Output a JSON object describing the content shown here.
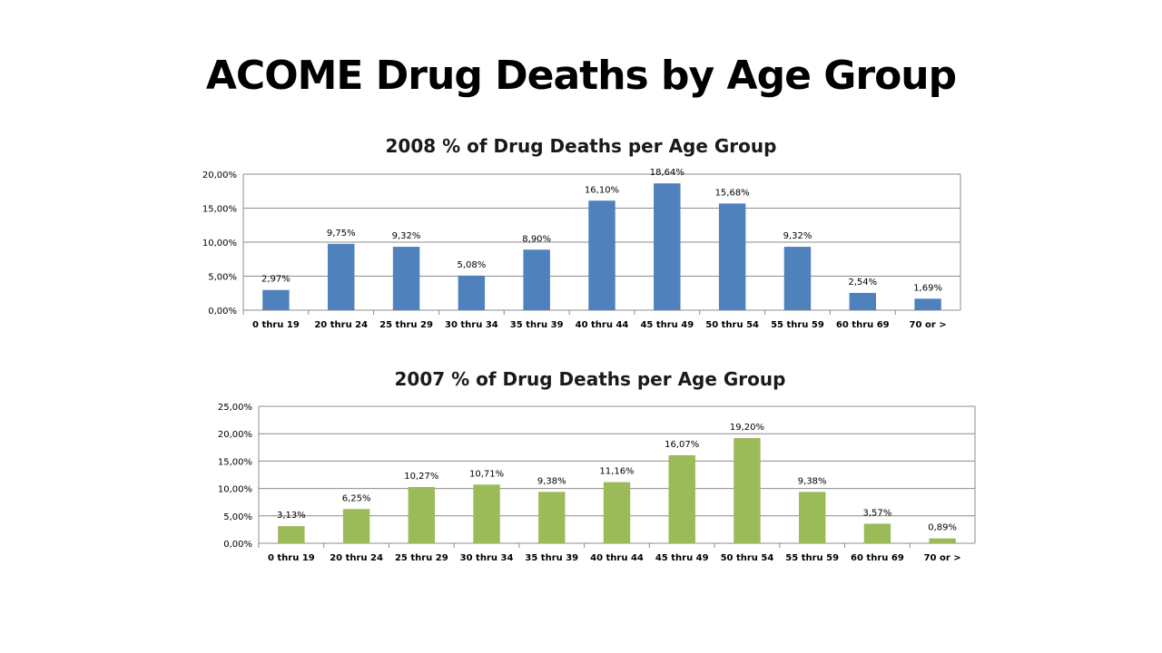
{
  "slide_title": "ACOME Drug Deaths by Age Group",
  "chart_data": [
    {
      "type": "bar",
      "title": "2008 % of Drug Deaths per Age Group",
      "xlabel": "",
      "ylabel": "",
      "categories": [
        "0 thru 19",
        "20 thru 24",
        "25 thru 29",
        "30 thru 34",
        "35 thru 39",
        "40 thru 44",
        "45 thru 49",
        "50 thru 54",
        "55 thru 59",
        "60 thru 69",
        "70 or >"
      ],
      "values": [
        2.97,
        9.75,
        9.32,
        5.08,
        8.9,
        16.1,
        18.64,
        15.68,
        9.32,
        2.54,
        1.69
      ],
      "value_labels": [
        "2,97%",
        "9,75%",
        "9,32%",
        "5,08%",
        "8,90%",
        "16,10%",
        "18,64%",
        "15,68%",
        "9,32%",
        "2,54%",
        "1,69%"
      ],
      "ylim": [
        0,
        20
      ],
      "yticks": [
        0,
        5,
        10,
        15,
        20
      ],
      "ytick_labels": [
        "0,00%",
        "5,00%",
        "10,00%",
        "15,00%",
        "20,00%"
      ],
      "grid": true,
      "legend": "none",
      "color": "#4f81bd"
    },
    {
      "type": "bar",
      "title": "2007 % of Drug Deaths per Age Group",
      "xlabel": "",
      "ylabel": "",
      "categories": [
        "0 thru 19",
        "20 thru 24",
        "25 thru 29",
        "30 thru 34",
        "35 thru 39",
        "40 thru 44",
        "45 thru 49",
        "50 thru 54",
        "55 thru 59",
        "60 thru 69",
        "70 or >"
      ],
      "values": [
        3.13,
        6.25,
        10.27,
        10.71,
        9.38,
        11.16,
        16.07,
        19.2,
        9.38,
        3.57,
        0.89
      ],
      "value_labels": [
        "3,13%",
        "6,25%",
        "10,27%",
        "10,71%",
        "9,38%",
        "11,16%",
        "16,07%",
        "19,20%",
        "9,38%",
        "3,57%",
        "0,89%"
      ],
      "ylim": [
        0,
        25
      ],
      "yticks": [
        0,
        5,
        10,
        15,
        20,
        25
      ],
      "ytick_labels": [
        "0,00%",
        "5,00%",
        "10,00%",
        "15,00%",
        "20,00%",
        "25,00%"
      ],
      "grid": true,
      "legend": "none",
      "color": "#9bbb59"
    }
  ]
}
